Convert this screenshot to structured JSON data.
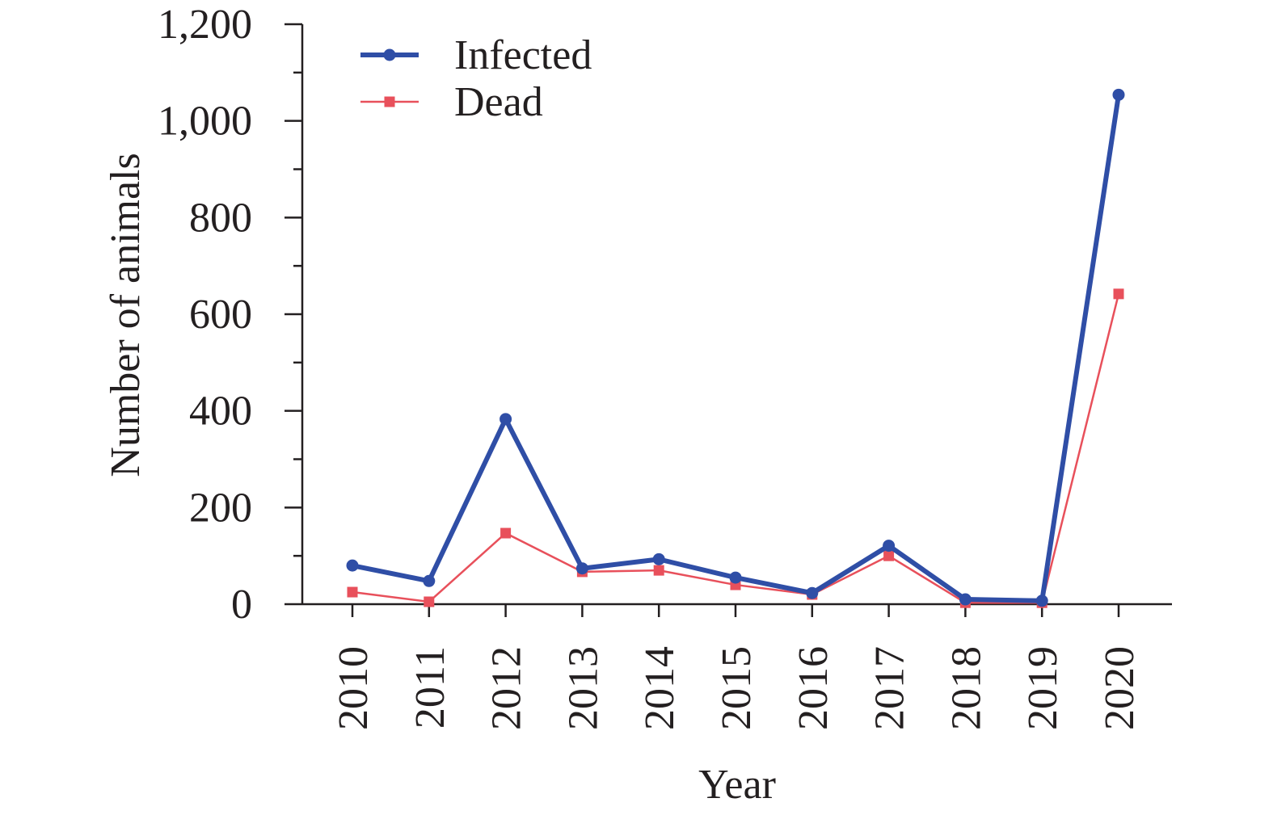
{
  "chart_data": {
    "type": "line",
    "title": "",
    "xlabel": "Year",
    "ylabel": "Number of animals",
    "categories": [
      "2010",
      "2011",
      "2012",
      "2013",
      "2014",
      "2015",
      "2016",
      "2017",
      "2018",
      "2019",
      "2020"
    ],
    "ylim": [
      0,
      1200
    ],
    "yticks": [
      0,
      200,
      400,
      600,
      800,
      1000,
      1200
    ],
    "ytick_labels": [
      "0",
      "200",
      "400",
      "600",
      "800",
      "1,000",
      "1,200"
    ],
    "grid": false,
    "legend_position": "top-left",
    "series": [
      {
        "name": "Infected",
        "color": "#2f4ea6",
        "marker": "circle",
        "values": [
          80,
          48,
          383,
          74,
          93,
          55,
          23,
          121,
          10,
          7,
          1054
        ]
      },
      {
        "name": "Dead",
        "color": "#e8505b",
        "marker": "square",
        "values": [
          25,
          5,
          147,
          67,
          70,
          40,
          20,
          100,
          3,
          3,
          642
        ]
      }
    ]
  }
}
